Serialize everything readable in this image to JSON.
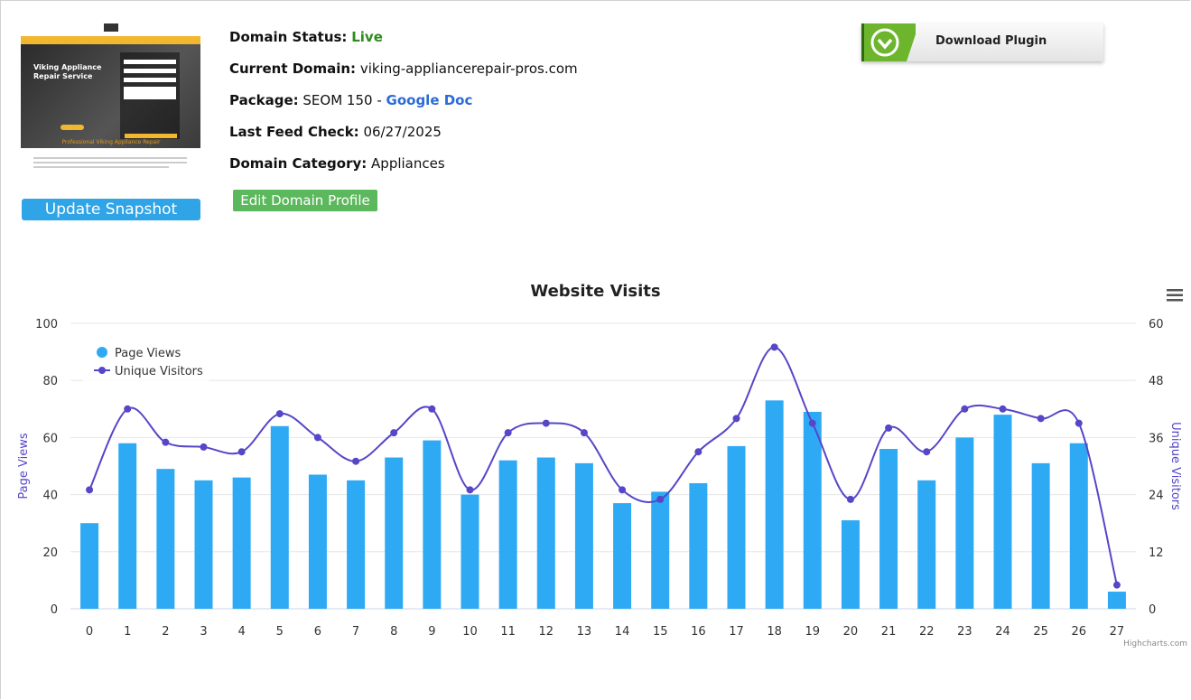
{
  "site": {
    "hero_title": "Viking Appliance Repair Service",
    "sub_heading": "Professional Viking Appliance Repair"
  },
  "snapshot_button": "Update Snapshot",
  "domain": {
    "status_label": "Domain Status:",
    "status_value": "Live",
    "current_label": "Current Domain:",
    "current_value": "viking-appliancerepair-pros.com",
    "package_label": "Package:",
    "package_value": "SEOM 150 -",
    "package_link": "Google Doc",
    "feed_label": "Last Feed Check:",
    "feed_value": "06/27/2025",
    "category_label": "Domain Category:",
    "category_value": "Appliances"
  },
  "edit_button": "Edit Domain Profile",
  "plugin_button": "Download Plugin",
  "credit": "Highcharts.com",
  "colors": {
    "bars": "#2eaaf5",
    "line": "#5646c8",
    "snapshot": "#2fa4e7",
    "edit": "#5cb85c",
    "status": "#2e8b1e",
    "link": "#2d6bd8"
  },
  "chart_data": {
    "type": "bar",
    "title": "Website Visits",
    "categories": [
      "0",
      "1",
      "2",
      "3",
      "4",
      "5",
      "6",
      "7",
      "8",
      "9",
      "10",
      "11",
      "12",
      "13",
      "14",
      "15",
      "16",
      "17",
      "18",
      "19",
      "20",
      "21",
      "22",
      "23",
      "24",
      "25",
      "26",
      "27"
    ],
    "series": [
      {
        "name": "Page Views",
        "type": "bar",
        "axis": "left",
        "values": [
          30,
          58,
          49,
          45,
          46,
          64,
          47,
          45,
          53,
          59,
          40,
          52,
          53,
          51,
          37,
          41,
          44,
          57,
          73,
          69,
          31,
          56,
          45,
          60,
          68,
          51,
          58,
          6
        ]
      },
      {
        "name": "Unique Visitors",
        "type": "line",
        "axis": "right",
        "values": [
          25,
          42,
          35,
          34,
          33,
          41,
          36,
          31,
          37,
          42,
          25,
          37,
          39,
          37,
          25,
          23,
          33,
          40,
          55,
          39,
          23,
          38,
          33,
          42,
          42,
          40,
          39,
          5
        ]
      }
    ],
    "ylabel": "Page Views",
    "y2label": "Unique Visitors",
    "ylim": [
      0,
      100
    ],
    "y2lim": [
      0,
      60
    ],
    "yticks": [
      "0",
      "20",
      "40",
      "60",
      "80",
      "100"
    ],
    "y2ticks": [
      "0",
      "12",
      "24",
      "36",
      "48",
      "60"
    ],
    "grid": true,
    "legend": "top-left"
  }
}
